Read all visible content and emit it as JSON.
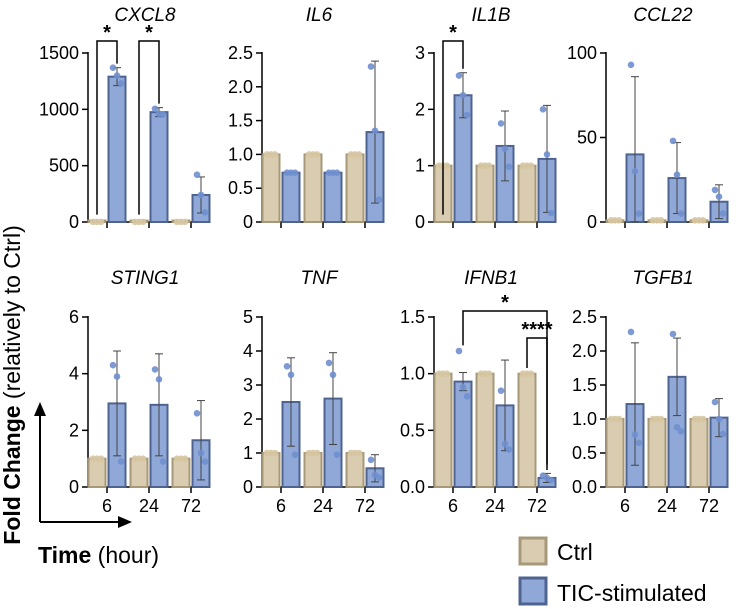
{
  "figure": {
    "ylabel_bold": "Fold Change",
    "ylabel_rest": " (relatively to Ctrl)",
    "xlabel_bold": "Time",
    "xlabel_rest": " (hour)",
    "legend": [
      {
        "name": "Ctrl",
        "fill": "#d9ccb0",
        "stroke": "#a8987a"
      },
      {
        "name": "TIC-stimulated",
        "fill": "#8fa8d8",
        "stroke": "#4f6390"
      }
    ],
    "point_color": "#6f8fcf",
    "ctrl_point_color": "#d6c7a2"
  },
  "chart_data": [
    {
      "type": "bar",
      "title": "CXCL8",
      "categories": [
        "6",
        "24",
        "72"
      ],
      "show_x_ticks": false,
      "ylim": [
        0,
        1500
      ],
      "yticks": [
        "0",
        "500",
        "1000",
        "1500"
      ],
      "series": [
        {
          "name": "Ctrl",
          "values": [
            1,
            1,
            1
          ],
          "err": [
            0,
            0,
            0
          ],
          "points": [
            [
              1,
              1,
              1
            ],
            [
              1,
              1,
              1
            ],
            [
              1,
              1,
              1
            ]
          ]
        },
        {
          "name": "TIC-stimulated",
          "values": [
            1290,
            975,
            240
          ],
          "err": [
            80,
            40,
            160
          ],
          "points": [
            [
              1370,
              1300,
              1230
            ],
            [
              1005,
              960,
              955
            ],
            [
              420,
              240,
              85
            ]
          ]
        }
      ],
      "annotations": [
        {
          "from": [
            0,
            0
          ],
          "to": [
            0,
            1
          ],
          "label": "*"
        },
        {
          "from": [
            1,
            0
          ],
          "to": [
            1,
            1
          ],
          "label": "*"
        }
      ]
    },
    {
      "type": "bar",
      "title": "IL6",
      "categories": [
        "6",
        "24",
        "72"
      ],
      "show_x_ticks": false,
      "ylim": [
        0,
        2.5
      ],
      "yticks": [
        "0",
        "0.5",
        "1.0",
        "1.5",
        "2.0",
        "2.5"
      ],
      "series": [
        {
          "name": "Ctrl",
          "values": [
            1,
            1,
            1
          ],
          "err": [
            0,
            0,
            0
          ],
          "points": [
            [
              1,
              1,
              1
            ],
            [
              1,
              1,
              1
            ],
            [
              1,
              1,
              1
            ]
          ]
        },
        {
          "name": "TIC-stimulated",
          "values": [
            0.73,
            0.73,
            1.33
          ],
          "err": [
            0,
            0,
            1.05
          ],
          "points": [
            [
              0.73,
              0.73,
              0.73
            ],
            [
              0.73,
              0.73,
              0.73
            ],
            [
              2.3,
              1.35,
              0.33
            ]
          ]
        }
      ],
      "annotations": []
    },
    {
      "type": "bar",
      "title": "IL1B",
      "categories": [
        "6",
        "24",
        "72"
      ],
      "show_x_ticks": false,
      "ylim": [
        0,
        3
      ],
      "yticks": [
        "0",
        "1",
        "2",
        "3"
      ],
      "series": [
        {
          "name": "Ctrl",
          "values": [
            1,
            1,
            1
          ],
          "err": [
            0,
            0,
            0
          ],
          "points": [
            [
              1,
              1,
              1
            ],
            [
              1,
              1,
              1
            ],
            [
              1,
              1,
              1
            ]
          ]
        },
        {
          "name": "TIC-stimulated",
          "values": [
            2.25,
            1.35,
            1.12
          ],
          "err": [
            0.4,
            0.62,
            0.95
          ],
          "points": [
            [
              2.6,
              2.25,
              1.9
            ],
            [
              1.75,
              1.3,
              0.98
            ],
            [
              2.0,
              1.2,
              0.16
            ]
          ]
        }
      ],
      "annotations": [
        {
          "from": [
            0,
            0
          ],
          "to": [
            0,
            1
          ],
          "label": "*"
        }
      ]
    },
    {
      "type": "bar",
      "title": "CCL22",
      "categories": [
        "6",
        "24",
        "72"
      ],
      "show_x_ticks": false,
      "ylim": [
        0,
        100
      ],
      "yticks": [
        "0",
        "50",
        "100"
      ],
      "series": [
        {
          "name": "Ctrl",
          "values": [
            1,
            1,
            1
          ],
          "err": [
            0,
            0,
            0
          ],
          "points": [
            [
              1,
              1,
              1
            ],
            [
              1,
              1,
              1
            ],
            [
              1,
              1,
              1
            ]
          ]
        },
        {
          "name": "TIC-stimulated",
          "values": [
            40,
            26,
            12
          ],
          "err": [
            46,
            21,
            10
          ],
          "points": [
            [
              93,
              30,
              5
            ],
            [
              48,
              28,
              5
            ],
            [
              19,
              15,
              5
            ]
          ]
        }
      ],
      "annotations": []
    },
    {
      "type": "bar",
      "title": "STING1",
      "categories": [
        "6",
        "24",
        "72"
      ],
      "show_x_ticks": true,
      "ylim": [
        0,
        6
      ],
      "yticks": [
        "0",
        "2",
        "4",
        "6"
      ],
      "series": [
        {
          "name": "Ctrl",
          "values": [
            1,
            1,
            1
          ],
          "err": [
            0,
            0,
            0
          ],
          "points": [
            [
              1,
              1,
              1
            ],
            [
              1,
              1,
              1
            ],
            [
              1,
              1,
              1
            ]
          ]
        },
        {
          "name": "TIC-stimulated",
          "values": [
            2.95,
            2.9,
            1.65
          ],
          "err": [
            1.85,
            1.8,
            1.4
          ],
          "points": [
            [
              4.3,
              3.9,
              0.9
            ],
            [
              4.15,
              3.8,
              0.9
            ],
            [
              2.6,
              1.2,
              0.9
            ]
          ]
        }
      ],
      "annotations": []
    },
    {
      "type": "bar",
      "title": "TNF",
      "categories": [
        "6",
        "24",
        "72"
      ],
      "show_x_ticks": true,
      "ylim": [
        0,
        5
      ],
      "yticks": [
        "0",
        "1",
        "2",
        "3",
        "4",
        "5"
      ],
      "series": [
        {
          "name": "Ctrl",
          "values": [
            1,
            1,
            1
          ],
          "err": [
            0,
            0,
            0
          ],
          "points": [
            [
              1,
              1,
              1
            ],
            [
              1,
              1,
              1
            ],
            [
              1,
              1,
              1
            ]
          ]
        },
        {
          "name": "TIC-stimulated",
          "values": [
            2.5,
            2.6,
            0.55
          ],
          "err": [
            1.3,
            1.35,
            0.4
          ],
          "points": [
            [
              3.55,
              3.3,
              0.95
            ],
            [
              3.65,
              3.3,
              0.95
            ],
            [
              0.8,
              0.35,
              0.28
            ]
          ]
        }
      ],
      "annotations": []
    },
    {
      "type": "bar",
      "title": "IFNB1",
      "categories": [
        "6",
        "24",
        "72"
      ],
      "show_x_ticks": true,
      "ylim": [
        0,
        1.5
      ],
      "yticks": [
        "0.0",
        "0.5",
        "1.0",
        "1.5"
      ],
      "series": [
        {
          "name": "Ctrl",
          "values": [
            1,
            1,
            1
          ],
          "err": [
            0,
            0,
            0
          ],
          "points": [
            [
              1,
              1,
              1
            ],
            [
              1,
              1,
              1
            ],
            [
              1,
              1,
              1
            ]
          ]
        },
        {
          "name": "TIC-stimulated",
          "values": [
            0.93,
            0.72,
            0.08
          ],
          "err": [
            0.08,
            0.4,
            0.04
          ],
          "points": [
            [
              1.2,
              0.88,
              0.8
            ],
            [
              0.85,
              0.38,
              0.33
            ],
            [
              0.1,
              0.08,
              0.06
            ]
          ]
        }
      ],
      "annotations": [
        {
          "from": [
            0,
            1
          ],
          "to": [
            2,
            1
          ],
          "label": "*"
        },
        {
          "from": [
            2,
            0
          ],
          "to": [
            2,
            1
          ],
          "label": "****"
        }
      ]
    },
    {
      "type": "bar",
      "title": "TGFB1",
      "categories": [
        "6",
        "24",
        "72"
      ],
      "show_x_ticks": true,
      "ylim": [
        0,
        2.5
      ],
      "yticks": [
        "0.0",
        "0.5",
        "1.0",
        "1.5",
        "2.0",
        "2.5"
      ],
      "series": [
        {
          "name": "Ctrl",
          "values": [
            1,
            1,
            1
          ],
          "err": [
            0,
            0,
            0
          ],
          "points": [
            [
              1,
              1,
              1
            ],
            [
              1,
              1,
              1
            ],
            [
              1,
              1,
              1
            ]
          ]
        },
        {
          "name": "TIC-stimulated",
          "values": [
            1.22,
            1.62,
            1.02
          ],
          "err": [
            0.9,
            0.57,
            0.28
          ],
          "points": [
            [
              2.28,
              0.77,
              0.65
            ],
            [
              2.25,
              0.88,
              0.82
            ],
            [
              1.25,
              1.0,
              0.78
            ]
          ]
        }
      ],
      "annotations": []
    }
  ]
}
